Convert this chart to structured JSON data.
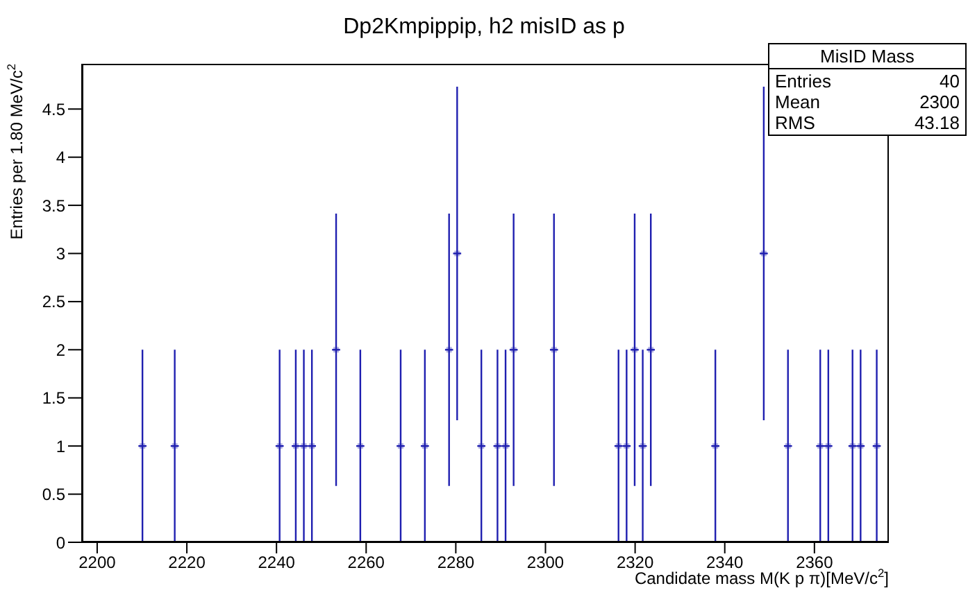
{
  "chart_data": {
    "type": "scatter",
    "title": "Dp2Kmpippip, h2 misID as p",
    "xlabel": "Candidate mass M(K p π)[MeV/c$^{2}$]",
    "ylabel": "Entries per 1.80 MeV/c$^{2}$",
    "annotations": [
      "MisID Mass",
      "Entries",
      "40",
      "Mean",
      "2300",
      "RMS",
      "43.18"
    ],
    "x": [
      2210.1,
      2217.3,
      2240.7,
      2244.3,
      2246.1,
      2247.9,
      2253.3,
      2258.7,
      2267.7,
      2273.1,
      2278.5,
      2280.3,
      2285.7,
      2289.3,
      2291.1,
      2292.9,
      2301.9,
      2316.3,
      2318.1,
      2319.9,
      2321.7,
      2323.5,
      2337.9,
      2348.7,
      2354.1,
      2361.3,
      2363.1,
      2368.5,
      2370.3,
      2373.9
    ],
    "series": [
      {
        "color": "#1f1fb0",
        "values": [
          1,
          1,
          1,
          1,
          1,
          1,
          2,
          1,
          1,
          1,
          2,
          3,
          1,
          1,
          1,
          2,
          2,
          1,
          1,
          2,
          1,
          2,
          1,
          3,
          1,
          1,
          1,
          1,
          1,
          1
        ],
        "errors": [
          1,
          1,
          1,
          1,
          1,
          1,
          1.414,
          1,
          1,
          1,
          1.414,
          1.732,
          1,
          1,
          1,
          1.414,
          1.414,
          1,
          1,
          1.414,
          1,
          1.414,
          1,
          1.732,
          1,
          1,
          1,
          1,
          1,
          1
        ],
        "xerrors": [
          0.9,
          0.9,
          0.9,
          0.9,
          0.9,
          0.9,
          0.9,
          0.9,
          0.9,
          0.9,
          0.9,
          0.9,
          0.9,
          0.9,
          0.9,
          0.9,
          0.9,
          0.9,
          0.9,
          0.9,
          0.9,
          0.9,
          0.9,
          0.9,
          0.9,
          0.9,
          0.9,
          0.9,
          0.9,
          0.9
        ]
      }
    ],
    "legend": false,
    "grid": false,
    "xlim": [
      2196.6,
      2376.6
    ],
    "xticks": [
      2200,
      2220,
      2240,
      2260,
      2280,
      2300,
      2320,
      2340,
      2360
    ],
    "ylim": [
      0,
      4.97
    ],
    "yticks": [
      0,
      0.5,
      1,
      1.5,
      2,
      2.5,
      3,
      3.5,
      4,
      4.5
    ]
  }
}
